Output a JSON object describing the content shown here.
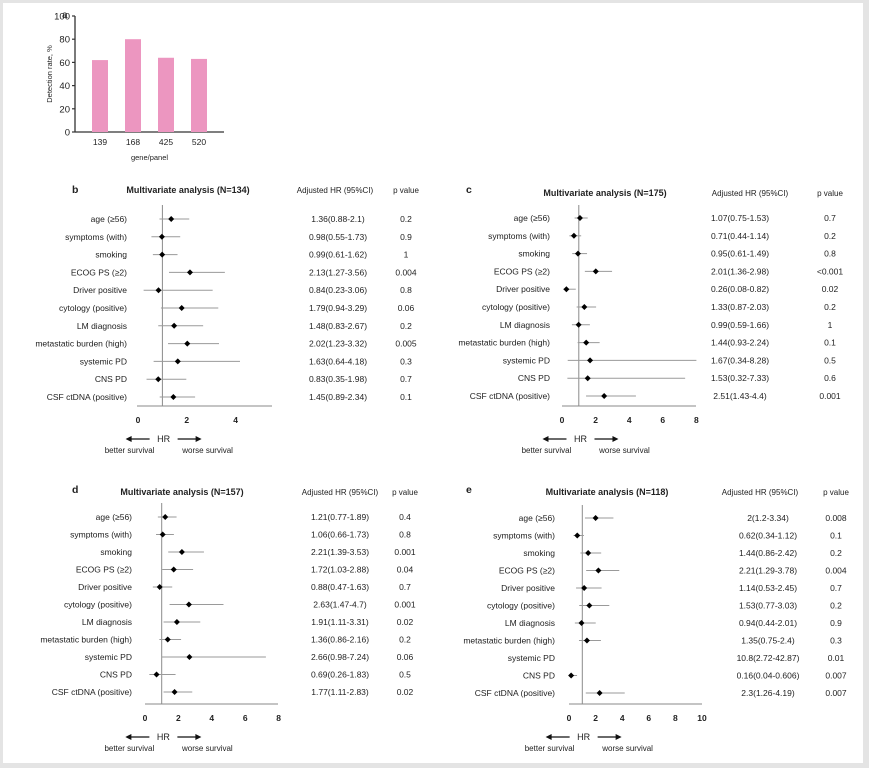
{
  "colors": {
    "bar": "#ec96c0",
    "axis": "#333333",
    "ci_line": "#9a9a9a",
    "ref_line": "#8a8a8a",
    "point": "#000000",
    "text": "#222222"
  },
  "chart_data": [
    {
      "panel": "a",
      "type": "bar",
      "categories": [
        "139",
        "168",
        "425",
        "520"
      ],
      "values": [
        62,
        80,
        64,
        63
      ],
      "title": "",
      "xlabel": "gene/panel",
      "ylabel": "Detection rate, %",
      "ylim": [
        0,
        100
      ],
      "yticks": [
        0,
        20,
        40,
        60,
        80,
        100
      ],
      "grid": false
    },
    {
      "panel": "b",
      "type": "forest",
      "title": "Multivariate analysis (N=134)",
      "col_hr": "Adjusted HR (95%CI)",
      "col_p": "p value",
      "xlabel": "HR",
      "left_hint": "better survival",
      "right_hint": "worse survival",
      "xlim": [
        0,
        5.5
      ],
      "xticks": [
        0,
        2,
        4
      ],
      "ref": 1,
      "rows": [
        {
          "label": "age (≥56)",
          "hr": 1.36,
          "lo": 0.88,
          "hi": 2.1,
          "text": "1.36(0.88-2.1)",
          "p": "0.2"
        },
        {
          "label": "symptoms (with)",
          "hr": 0.98,
          "lo": 0.55,
          "hi": 1.73,
          "text": "0.98(0.55-1.73)",
          "p": "0.9"
        },
        {
          "label": "smoking",
          "hr": 0.99,
          "lo": 0.61,
          "hi": 1.62,
          "text": "0.99(0.61-1.62)",
          "p": "1"
        },
        {
          "label": "ECOG PS (≥2)",
          "hr": 2.13,
          "lo": 1.27,
          "hi": 3.56,
          "text": "2.13(1.27-3.56)",
          "p": "0.004"
        },
        {
          "label": "Driver positive",
          "hr": 0.84,
          "lo": 0.23,
          "hi": 3.06,
          "text": "0.84(0.23-3.06)",
          "p": "0.8"
        },
        {
          "label": "cytology (positive)",
          "hr": 1.79,
          "lo": 0.94,
          "hi": 3.29,
          "text": "1.79(0.94-3.29)",
          "p": "0.06"
        },
        {
          "label": "LM diagnosis",
          "hr": 1.48,
          "lo": 0.83,
          "hi": 2.67,
          "text": "1.48(0.83-2.67)",
          "p": "0.2"
        },
        {
          "label": "metastatic burden (high)",
          "hr": 2.02,
          "lo": 1.23,
          "hi": 3.32,
          "text": "2.02(1.23-3.32)",
          "p": "0.005"
        },
        {
          "label": "systemic PD",
          "hr": 1.63,
          "lo": 0.64,
          "hi": 4.18,
          "text": "1.63(0.64-4.18)",
          "p": "0.3"
        },
        {
          "label": "CNS PD",
          "hr": 0.83,
          "lo": 0.35,
          "hi": 1.98,
          "text": "0.83(0.35-1.98)",
          "p": "0.7"
        },
        {
          "label": "CSF ctDNA (positive)",
          "hr": 1.45,
          "lo": 0.89,
          "hi": 2.34,
          "text": "1.45(0.89-2.34)",
          "p": "0.1"
        }
      ]
    },
    {
      "panel": "c",
      "type": "forest",
      "title": "Multivariate analysis (N=175)",
      "col_hr": "Adjusted HR (95%CI)",
      "col_p": "p value",
      "xlabel": "HR",
      "left_hint": "better survival",
      "right_hint": "worse survival",
      "xlim": [
        0,
        8
      ],
      "xticks": [
        0,
        2,
        4,
        6,
        8
      ],
      "ref": 1,
      "rows": [
        {
          "label": "age (≥56)",
          "hr": 1.07,
          "lo": 0.75,
          "hi": 1.53,
          "text": "1.07(0.75-1.53)",
          "p": "0.7"
        },
        {
          "label": "symptoms (with)",
          "hr": 0.71,
          "lo": 0.44,
          "hi": 1.14,
          "text": "0.71(0.44-1.14)",
          "p": "0.2"
        },
        {
          "label": "smoking",
          "hr": 0.95,
          "lo": 0.61,
          "hi": 1.49,
          "text": "0.95(0.61-1.49)",
          "p": "0.8"
        },
        {
          "label": "ECOG PS (≥2)",
          "hr": 2.01,
          "lo": 1.36,
          "hi": 2.98,
          "text": "2.01(1.36-2.98)",
          "p": "<0.001"
        },
        {
          "label": "Driver positive",
          "hr": 0.26,
          "lo": 0.08,
          "hi": 0.82,
          "text": "0.26(0.08-0.82)",
          "p": "0.02"
        },
        {
          "label": "cytology (positive)",
          "hr": 1.33,
          "lo": 0.87,
          "hi": 2.03,
          "text": "1.33(0.87-2.03)",
          "p": "0.2"
        },
        {
          "label": "LM diagnosis",
          "hr": 0.99,
          "lo": 0.59,
          "hi": 1.66,
          "text": "0.99(0.59-1.66)",
          "p": "1"
        },
        {
          "label": "metastatic burden (high)",
          "hr": 1.44,
          "lo": 0.93,
          "hi": 2.24,
          "text": "1.44(0.93-2.24)",
          "p": "0.1"
        },
        {
          "label": "systemic PD",
          "hr": 1.67,
          "lo": 0.34,
          "hi": 8.28,
          "text": "1.67(0.34-8.28)",
          "p": "0.5"
        },
        {
          "label": "CNS PD",
          "hr": 1.53,
          "lo": 0.32,
          "hi": 7.33,
          "text": "1.53(0.32-7.33)",
          "p": "0.6"
        },
        {
          "label": "CSF ctDNA (positive)",
          "hr": 2.51,
          "lo": 1.43,
          "hi": 4.4,
          "text": "2.51(1.43-4.4)",
          "p": "0.001"
        }
      ]
    },
    {
      "panel": "d",
      "type": "forest",
      "title": "Multivariate analysis (N=157)",
      "col_hr": "Adjusted HR (95%CI)",
      "col_p": "p value",
      "xlabel": "HR",
      "left_hint": "better survival",
      "right_hint": "worse survival",
      "xlim": [
        0,
        8
      ],
      "xticks": [
        0,
        2,
        4,
        6,
        8
      ],
      "ref": 1,
      "rows": [
        {
          "label": "age (≥56)",
          "hr": 1.21,
          "lo": 0.77,
          "hi": 1.89,
          "text": "1.21(0.77-1.89)",
          "p": "0.4"
        },
        {
          "label": "symptoms (with)",
          "hr": 1.06,
          "lo": 0.66,
          "hi": 1.73,
          "text": "1.06(0.66-1.73)",
          "p": "0.8"
        },
        {
          "label": "smoking",
          "hr": 2.21,
          "lo": 1.39,
          "hi": 3.53,
          "text": "2.21(1.39-3.53)",
          "p": "0.001"
        },
        {
          "label": "ECOG PS (≥2)",
          "hr": 1.72,
          "lo": 1.03,
          "hi": 2.88,
          "text": "1.72(1.03-2.88)",
          "p": "0.04"
        },
        {
          "label": "Driver positive",
          "hr": 0.88,
          "lo": 0.47,
          "hi": 1.63,
          "text": "0.88(0.47-1.63)",
          "p": "0.7"
        },
        {
          "label": "cytology (positive)",
          "hr": 2.63,
          "lo": 1.47,
          "hi": 4.7,
          "text": "2.63(1.47-4.7)",
          "p": "0.001"
        },
        {
          "label": "LM diagnosis",
          "hr": 1.91,
          "lo": 1.11,
          "hi": 3.31,
          "text": "1.91(1.11-3.31)",
          "p": "0.02"
        },
        {
          "label": "metastatic burden (high)",
          "hr": 1.36,
          "lo": 0.86,
          "hi": 2.16,
          "text": "1.36(0.86-2.16)",
          "p": "0.2"
        },
        {
          "label": "systemic PD",
          "hr": 2.66,
          "lo": 0.98,
          "hi": 7.24,
          "text": "2.66(0.98-7.24)",
          "p": "0.06"
        },
        {
          "label": "CNS PD",
          "hr": 0.69,
          "lo": 0.26,
          "hi": 1.83,
          "text": "0.69(0.26-1.83)",
          "p": "0.5"
        },
        {
          "label": "CSF ctDNA (positive)",
          "hr": 1.77,
          "lo": 1.11,
          "hi": 2.83,
          "text": "1.77(1.11-2.83)",
          "p": "0.02"
        }
      ]
    },
    {
      "panel": "e",
      "type": "forest",
      "title": "Multivariate analysis (N=118)",
      "col_hr": "Adjusted HR (95%CI)",
      "col_p": "p value",
      "xlabel": "HR",
      "left_hint": "better survival",
      "right_hint": "worse survival",
      "xlim": [
        0,
        10
      ],
      "xticks": [
        0,
        2,
        4,
        6,
        8,
        10
      ],
      "ref": 1,
      "rows": [
        {
          "label": "age (≥56)",
          "hr": 2,
          "lo": 1.2,
          "hi": 3.34,
          "text": "2(1.2-3.34)",
          "p": "0.008"
        },
        {
          "label": "symptoms (with)",
          "hr": 0.62,
          "lo": 0.34,
          "hi": 1.12,
          "text": "0.62(0.34-1.12)",
          "p": "0.1"
        },
        {
          "label": "smoking",
          "hr": 1.44,
          "lo": 0.86,
          "hi": 2.42,
          "text": "1.44(0.86-2.42)",
          "p": "0.2"
        },
        {
          "label": "ECOG PS (≥2)",
          "hr": 2.21,
          "lo": 1.29,
          "hi": 3.78,
          "text": "2.21(1.29-3.78)",
          "p": "0.004"
        },
        {
          "label": "Driver positive",
          "hr": 1.14,
          "lo": 0.53,
          "hi": 2.45,
          "text": "1.14(0.53-2.45)",
          "p": "0.7"
        },
        {
          "label": "cytology (positive)",
          "hr": 1.53,
          "lo": 0.77,
          "hi": 3.03,
          "text": "1.53(0.77-3.03)",
          "p": "0.2"
        },
        {
          "label": "LM diagnosis",
          "hr": 0.94,
          "lo": 0.44,
          "hi": 2.01,
          "text": "0.94(0.44-2.01)",
          "p": "0.9"
        },
        {
          "label": "metastatic burden (high)",
          "hr": 1.35,
          "lo": 0.75,
          "hi": 2.4,
          "text": "1.35(0.75-2.4)",
          "p": "0.3"
        },
        {
          "label": "systemic PD",
          "hr": 10.8,
          "lo": 2.72,
          "hi": 42.87,
          "text": "10.8(2.72-42.87)",
          "p": "0.01",
          "plotted": false
        },
        {
          "label": "CNS PD",
          "hr": 0.16,
          "lo": 0.04,
          "hi": 0.606,
          "text": "0.16(0.04-0.606)",
          "p": "0.007"
        },
        {
          "label": "CSF ctDNA (positive)",
          "hr": 2.3,
          "lo": 1.26,
          "hi": 4.19,
          "text": "2.3(1.26-4.19)",
          "p": "0.007"
        }
      ]
    }
  ]
}
